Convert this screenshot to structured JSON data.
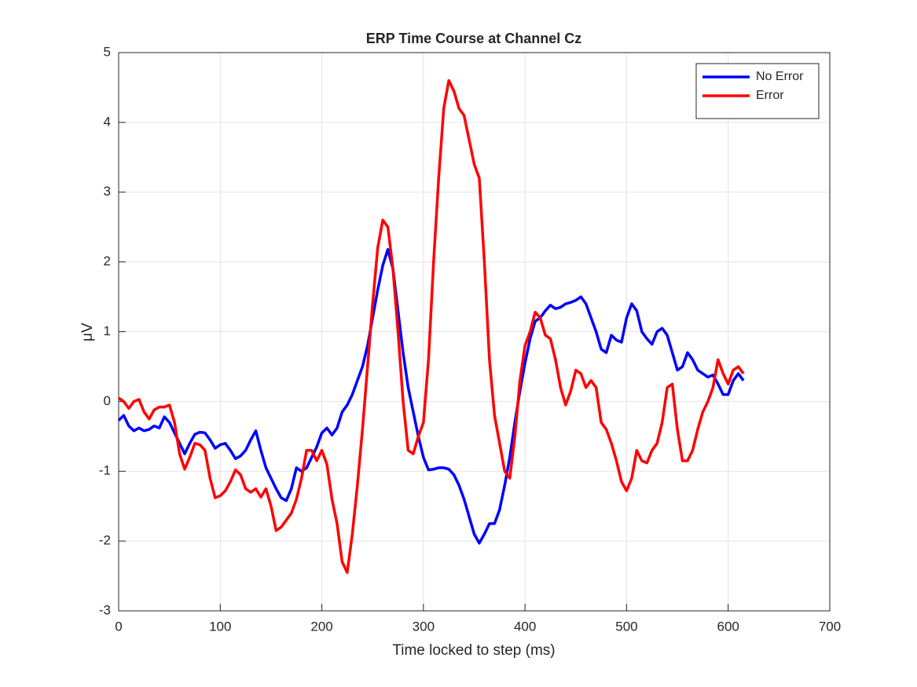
{
  "chart_data": {
    "type": "line",
    "title": "ERP Time Course at Channel Cz",
    "x_label": "Time locked to step (ms)",
    "y_label": "μV",
    "x": [
      0,
      5,
      10,
      15,
      20,
      25,
      30,
      35,
      40,
      45,
      50,
      55,
      60,
      65,
      70,
      75,
      80,
      85,
      90,
      95,
      100,
      105,
      110,
      115,
      120,
      125,
      130,
      135,
      140,
      145,
      150,
      155,
      160,
      165,
      170,
      175,
      180,
      185,
      190,
      195,
      200,
      205,
      210,
      215,
      220,
      225,
      230,
      235,
      240,
      245,
      250,
      255,
      260,
      265,
      270,
      275,
      280,
      285,
      290,
      295,
      300,
      305,
      310,
      315,
      320,
      325,
      330,
      335,
      340,
      345,
      350,
      355,
      360,
      365,
      370,
      375,
      380,
      385,
      390,
      395,
      400,
      405,
      410,
      415,
      420,
      425,
      430,
      435,
      440,
      445,
      450,
      455,
      460,
      465,
      470,
      475,
      480,
      485,
      490,
      495,
      500,
      505,
      510,
      515,
      520,
      525,
      530,
      535,
      540,
      545,
      550,
      555,
      560,
      565,
      570,
      575,
      580,
      585,
      590,
      595,
      600,
      605,
      610,
      615
    ],
    "series": [
      {
        "name": "No Error",
        "color": "#0000ff",
        "values": [
          -0.27,
          -0.2,
          -0.35,
          -0.42,
          -0.38,
          -0.42,
          -0.4,
          -0.35,
          -0.38,
          -0.22,
          -0.3,
          -0.45,
          -0.6,
          -0.75,
          -0.6,
          -0.47,
          -0.44,
          -0.45,
          -0.55,
          -0.67,
          -0.62,
          -0.6,
          -0.7,
          -0.82,
          -0.78,
          -0.7,
          -0.55,
          -0.42,
          -0.7,
          -0.95,
          -1.1,
          -1.25,
          -1.38,
          -1.42,
          -1.25,
          -0.95,
          -1.0,
          -0.95,
          -0.8,
          -0.65,
          -0.45,
          -0.38,
          -0.48,
          -0.38,
          -0.15,
          -0.05,
          0.1,
          0.3,
          0.5,
          0.8,
          1.2,
          1.6,
          1.95,
          2.18,
          1.9,
          1.3,
          0.7,
          0.2,
          -0.15,
          -0.5,
          -0.8,
          -0.98,
          -0.97,
          -0.95,
          -0.95,
          -0.97,
          -1.05,
          -1.2,
          -1.4,
          -1.65,
          -1.9,
          -2.03,
          -1.9,
          -1.75,
          -1.75,
          -1.55,
          -1.2,
          -0.8,
          -0.3,
          0.15,
          0.55,
          0.9,
          1.15,
          1.2,
          1.3,
          1.38,
          1.33,
          1.35,
          1.4,
          1.42,
          1.45,
          1.5,
          1.4,
          1.2,
          1.0,
          0.75,
          0.7,
          0.95,
          0.88,
          0.85,
          1.2,
          1.4,
          1.3,
          1.0,
          0.9,
          0.82,
          1.0,
          1.05,
          0.95,
          0.7,
          0.45,
          0.5,
          0.7,
          0.6,
          0.45,
          0.4,
          0.35,
          0.38,
          0.25,
          0.1,
          0.1,
          0.3,
          0.4,
          0.3
        ]
      },
      {
        "name": "Error",
        "color": "#ff0000",
        "values": [
          0.05,
          0.0,
          -0.1,
          0.0,
          0.03,
          -0.15,
          -0.25,
          -0.12,
          -0.08,
          -0.08,
          -0.05,
          -0.3,
          -0.75,
          -0.97,
          -0.8,
          -0.6,
          -0.62,
          -0.7,
          -1.1,
          -1.38,
          -1.35,
          -1.28,
          -1.15,
          -0.98,
          -1.05,
          -1.25,
          -1.3,
          -1.25,
          -1.37,
          -1.25,
          -1.5,
          -1.85,
          -1.8,
          -1.7,
          -1.6,
          -1.4,
          -1.1,
          -0.7,
          -0.7,
          -0.85,
          -0.7,
          -0.9,
          -1.4,
          -1.75,
          -2.3,
          -2.45,
          -1.9,
          -1.2,
          -0.4,
          0.5,
          1.4,
          2.2,
          2.6,
          2.5,
          1.9,
          1.0,
          0.0,
          -0.7,
          -0.75,
          -0.5,
          -0.3,
          0.6,
          2.0,
          3.2,
          4.2,
          4.6,
          4.45,
          4.2,
          4.1,
          3.75,
          3.4,
          3.2,
          2.0,
          0.6,
          -0.2,
          -0.6,
          -1.0,
          -1.1,
          -0.5,
          0.3,
          0.8,
          1.0,
          1.28,
          1.2,
          0.95,
          0.9,
          0.6,
          0.2,
          -0.05,
          0.15,
          0.45,
          0.4,
          0.2,
          0.3,
          0.2,
          -0.3,
          -0.4,
          -0.6,
          -0.85,
          -1.15,
          -1.28,
          -1.1,
          -0.7,
          -0.85,
          -0.88,
          -0.7,
          -0.6,
          -0.3,
          0.2,
          0.25,
          -0.4,
          -0.85,
          -0.85,
          -0.7,
          -0.4,
          -0.15,
          0.0,
          0.2,
          0.6,
          0.4,
          0.25,
          0.45,
          0.5,
          0.4
        ]
      }
    ],
    "xlim": [
      0,
      700
    ],
    "xticks": [
      0,
      100,
      200,
      300,
      400,
      500,
      600,
      700
    ],
    "ylim": [
      -3,
      5
    ],
    "yticks": [
      -3,
      -2,
      -1,
      0,
      1,
      2,
      3,
      4,
      5
    ],
    "grid": true,
    "legend": "top-right"
  }
}
